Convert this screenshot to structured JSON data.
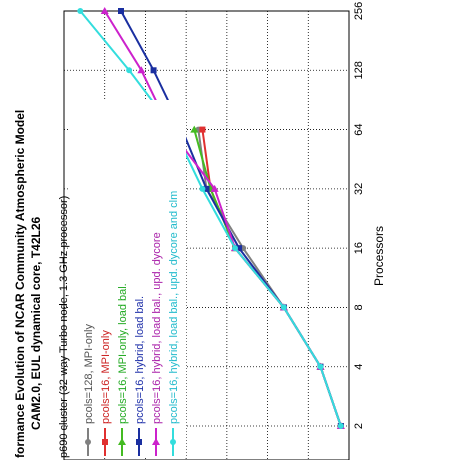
{
  "chart_data": {
    "type": "line",
    "orientation": "rotated-90-clockwise",
    "title_lines": [
      "formance Evolution of NCAR Community Atmospheric Model",
      "CAM2.0, EUL dynamical core, T42L26",
      "p690 cluster (32-way Turbo node, 1.3 GHz processor)"
    ],
    "xlabel": "Processors",
    "ylabel": "",
    "x_scale": "log2",
    "x_ticks": [
      2,
      4,
      8,
      16,
      32,
      64,
      128,
      256
    ],
    "x_tick_labels": [
      "2",
      "4",
      "8",
      "16",
      "32",
      "64",
      "128",
      "256"
    ],
    "xlim": [
      2,
      256
    ],
    "ylim": [
      0,
      7
    ],
    "y_gridlines": [
      0,
      1,
      2,
      3,
      4,
      5,
      6
    ],
    "grid": true,
    "legend_position": "inside, along title edge",
    "series": [
      {
        "name": "pcols=128, MPI-only",
        "label_color": "#555555",
        "color": "#808080",
        "marker": "circle",
        "x": [
          2,
          4,
          8,
          16,
          32,
          64
        ],
        "y": [
          0.2,
          0.7,
          1.6,
          2.6,
          3.5,
          3.7
        ]
      },
      {
        "name": "pcols=16, MPI-only",
        "label_color": "#cc2222",
        "color": "#e03030",
        "marker": "square",
        "x": [
          2,
          4,
          8,
          16,
          32,
          64
        ],
        "y": [
          0.2,
          0.7,
          1.6,
          2.8,
          3.4,
          3.6
        ]
      },
      {
        "name": "pcols=16, MPI-only, load bal.",
        "label_color": "#22aa22",
        "color": "#44bb22",
        "marker": "triangle",
        "x": [
          2,
          4,
          8,
          16,
          32,
          64
        ],
        "y": [
          0.2,
          0.7,
          1.6,
          2.8,
          3.4,
          3.8
        ]
      },
      {
        "name": "pcols=16, hybrid, load bal.",
        "label_color": "#2233aa",
        "color": "#1a2fa0",
        "marker": "square",
        "x": [
          2,
          4,
          8,
          16,
          32,
          64,
          128,
          256
        ],
        "y": [
          0.2,
          0.7,
          1.6,
          2.7,
          3.5,
          4.1,
          4.8,
          5.6
        ]
      },
      {
        "name": "pcols=16, hybrid, load bal., upd. dycore",
        "label_color": "#aa22aa",
        "color": "#cc22cc",
        "marker": "triangle",
        "x": [
          2,
          4,
          8,
          16,
          32,
          64,
          128,
          256
        ],
        "y": [
          0.2,
          0.7,
          1.6,
          2.8,
          3.3,
          4.4,
          5.1,
          6.0
        ]
      },
      {
        "name": "pcols=16, hybrid, load bal., upd. dycore and clm",
        "label_color": "#22bbcc",
        "color": "#33dddd",
        "marker": "circle",
        "x": [
          2,
          4,
          8,
          16,
          32,
          64,
          128,
          256
        ],
        "y": [
          0.2,
          0.7,
          1.6,
          2.8,
          3.6,
          4.3,
          5.4,
          6.6
        ]
      }
    ]
  }
}
